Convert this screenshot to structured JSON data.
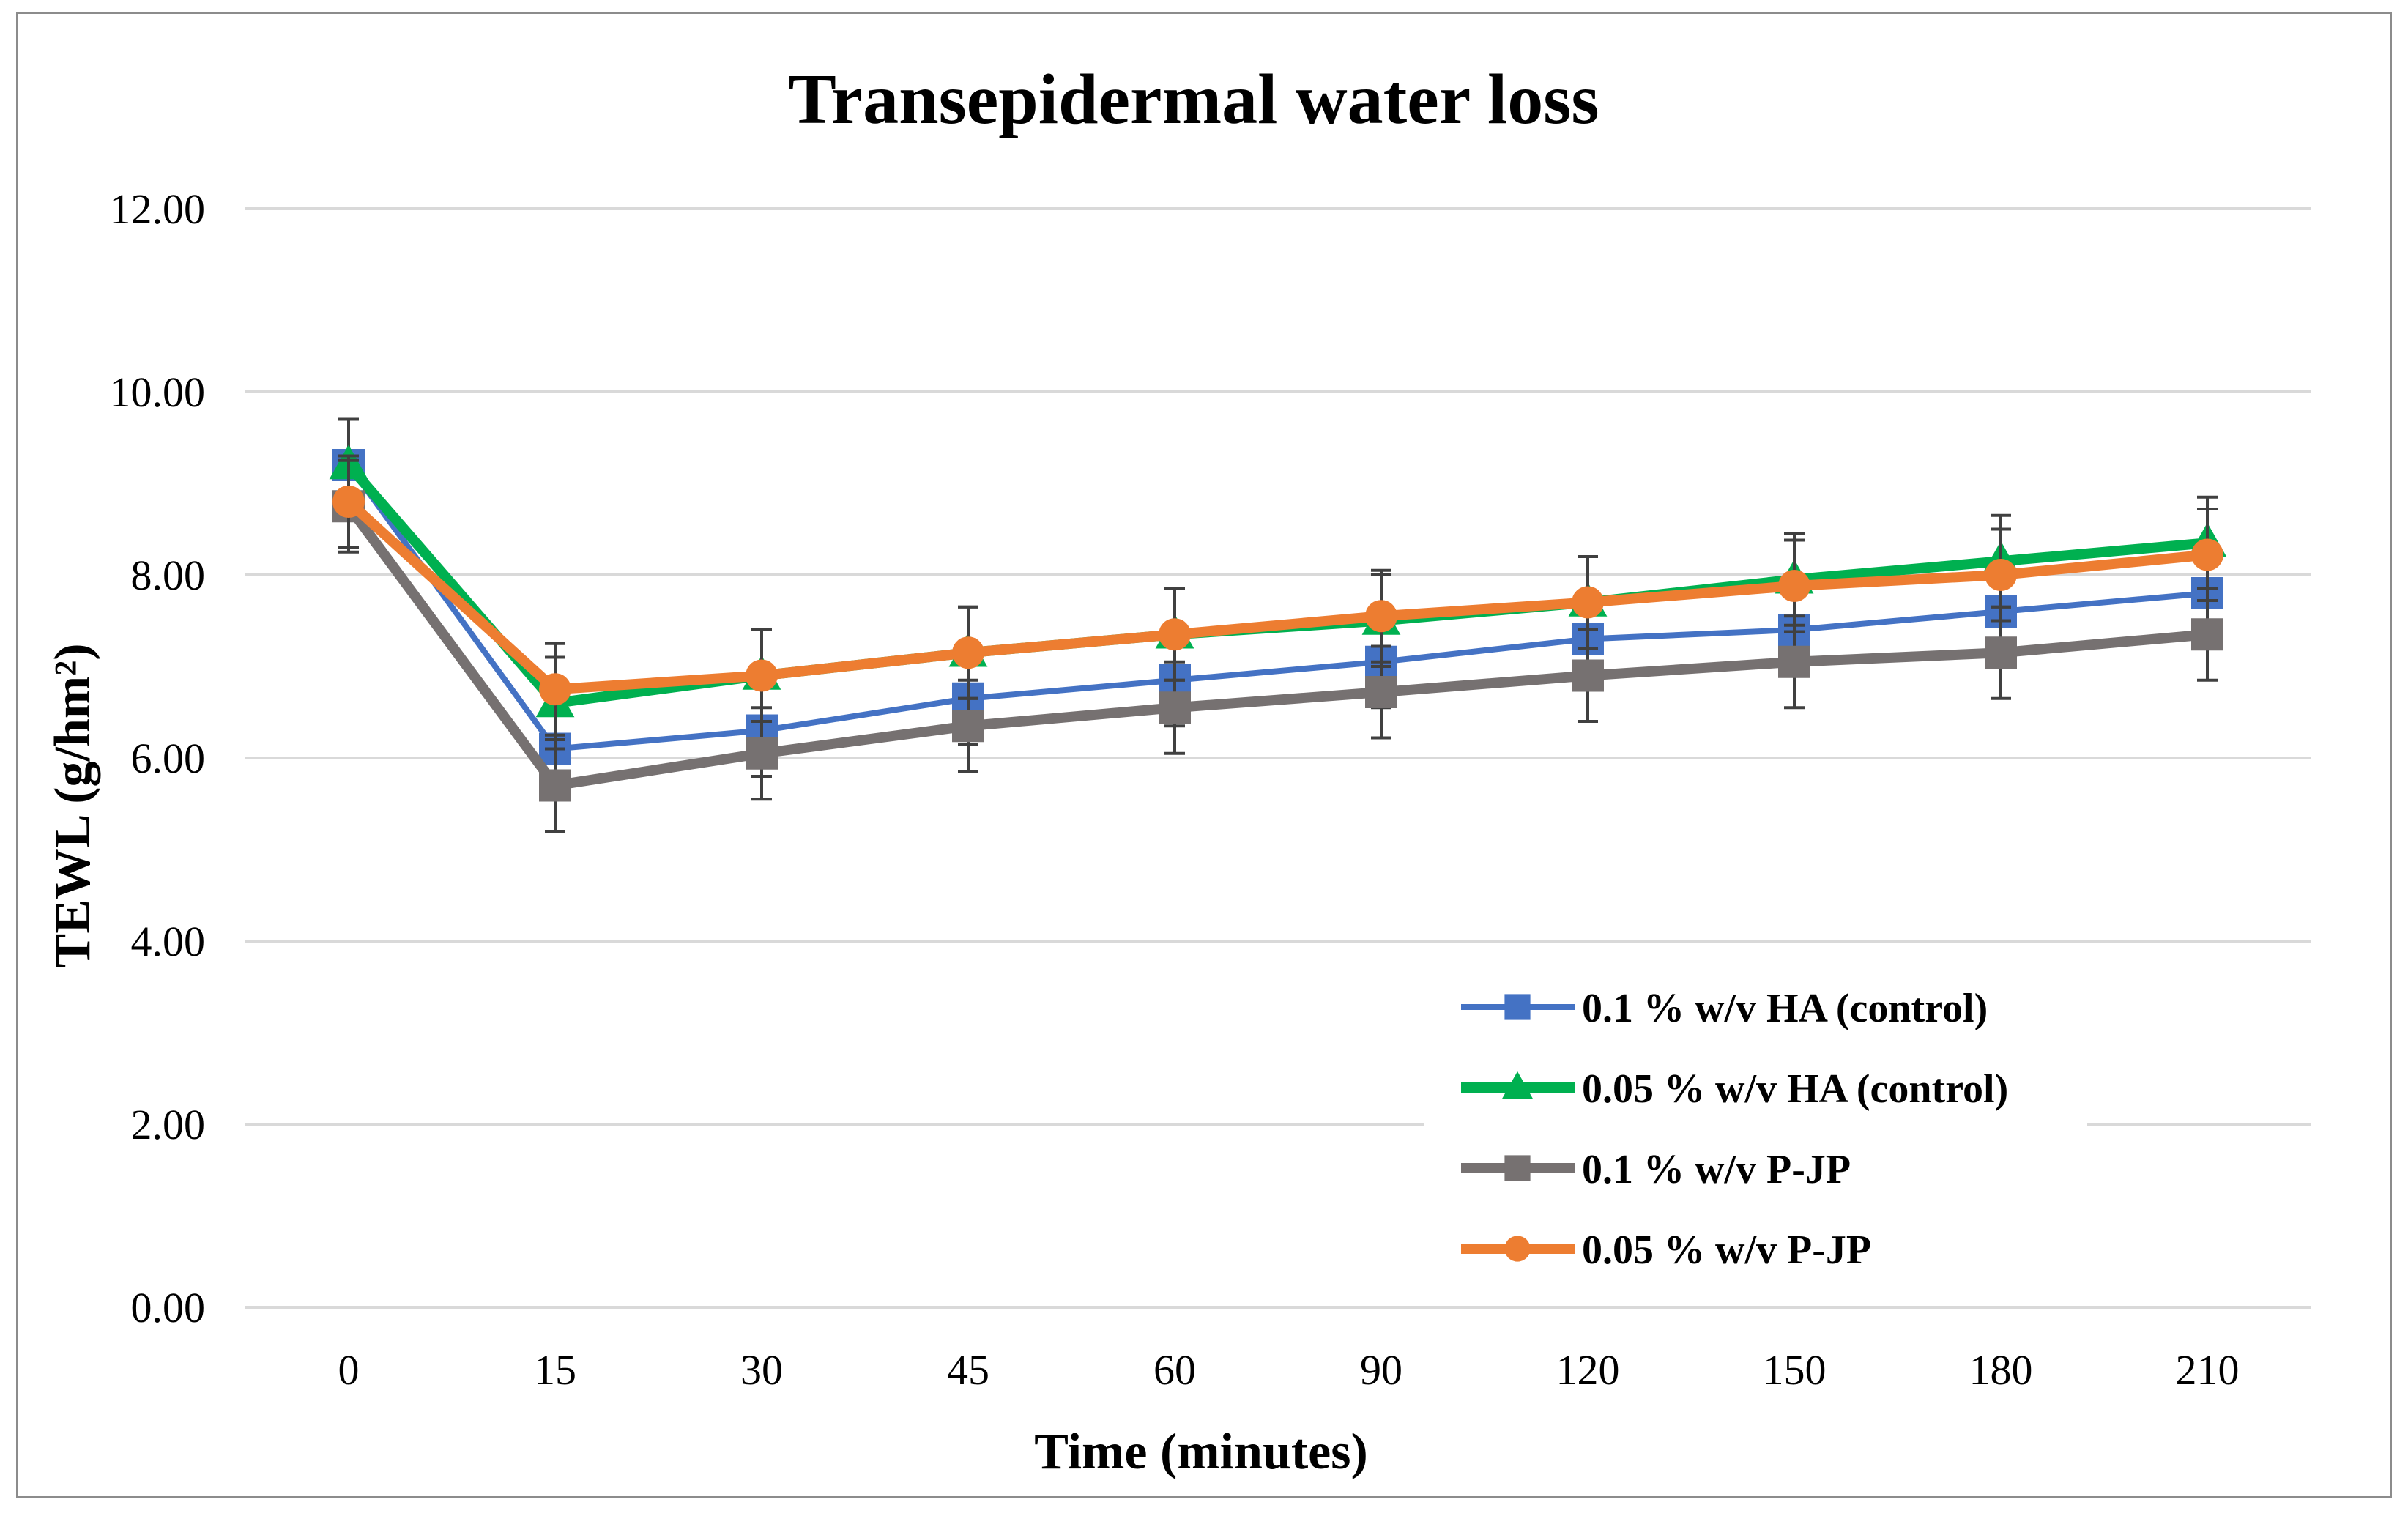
{
  "chart_data": {
    "type": "line",
    "title": "Transepidermal  water loss",
    "xlabel": "Time (minutes)",
    "ylabel": "TEWL  (g/hm²)",
    "categories": [
      "0",
      "15",
      "30",
      "45",
      "60",
      "90",
      "120",
      "150",
      "180",
      "210"
    ],
    "ylim": [
      0,
      12
    ],
    "yticks": [
      0,
      2,
      4,
      6,
      8,
      10,
      12
    ],
    "ytick_labels": [
      "0.00",
      "2.00",
      "4.00",
      "6.00",
      "8.00",
      "10.00",
      "12.00"
    ],
    "grid": true,
    "legend_position": "bottom-right",
    "series": [
      {
        "name": "0.1 % w/v HA (control)",
        "color": "#4472c4",
        "marker": "square",
        "values": [
          9.2,
          6.1,
          6.3,
          6.65,
          6.85,
          7.05,
          7.3,
          7.4,
          7.6,
          7.8
        ],
        "errors": [
          0.5,
          0.5,
          0.5,
          0.5,
          0.5,
          0.5,
          0.5,
          0.5,
          0.5,
          0.5
        ]
      },
      {
        "name": "0.05 % w/v HA (control)",
        "color": "#00b050",
        "marker": "triangle",
        "values": [
          9.2,
          6.6,
          6.9,
          7.15,
          7.35,
          7.5,
          7.7,
          7.95,
          8.15,
          8.35
        ],
        "errors": [
          0.5,
          0.5,
          0.5,
          0.5,
          0.5,
          0.5,
          0.5,
          0.5,
          0.5,
          0.5
        ]
      },
      {
        "name": "0.1 % w/v P-JP",
        "color": "#767171",
        "marker": "square",
        "values": [
          8.75,
          5.7,
          6.05,
          6.35,
          6.55,
          6.72,
          6.9,
          7.05,
          7.15,
          7.35
        ],
        "errors": [
          0.5,
          0.5,
          0.5,
          0.5,
          0.5,
          0.5,
          0.5,
          0.5,
          0.5,
          0.5
        ]
      },
      {
        "name": "0.05 % w/v P-JP",
        "color": "#ed7d31",
        "marker": "circle",
        "values": [
          8.8,
          6.75,
          6.9,
          7.15,
          7.35,
          7.55,
          7.7,
          7.88,
          8.0,
          8.22
        ],
        "errors": [
          0.5,
          0.5,
          0.5,
          0.5,
          0.5,
          0.5,
          0.5,
          0.5,
          0.5,
          0.5
        ]
      }
    ]
  }
}
